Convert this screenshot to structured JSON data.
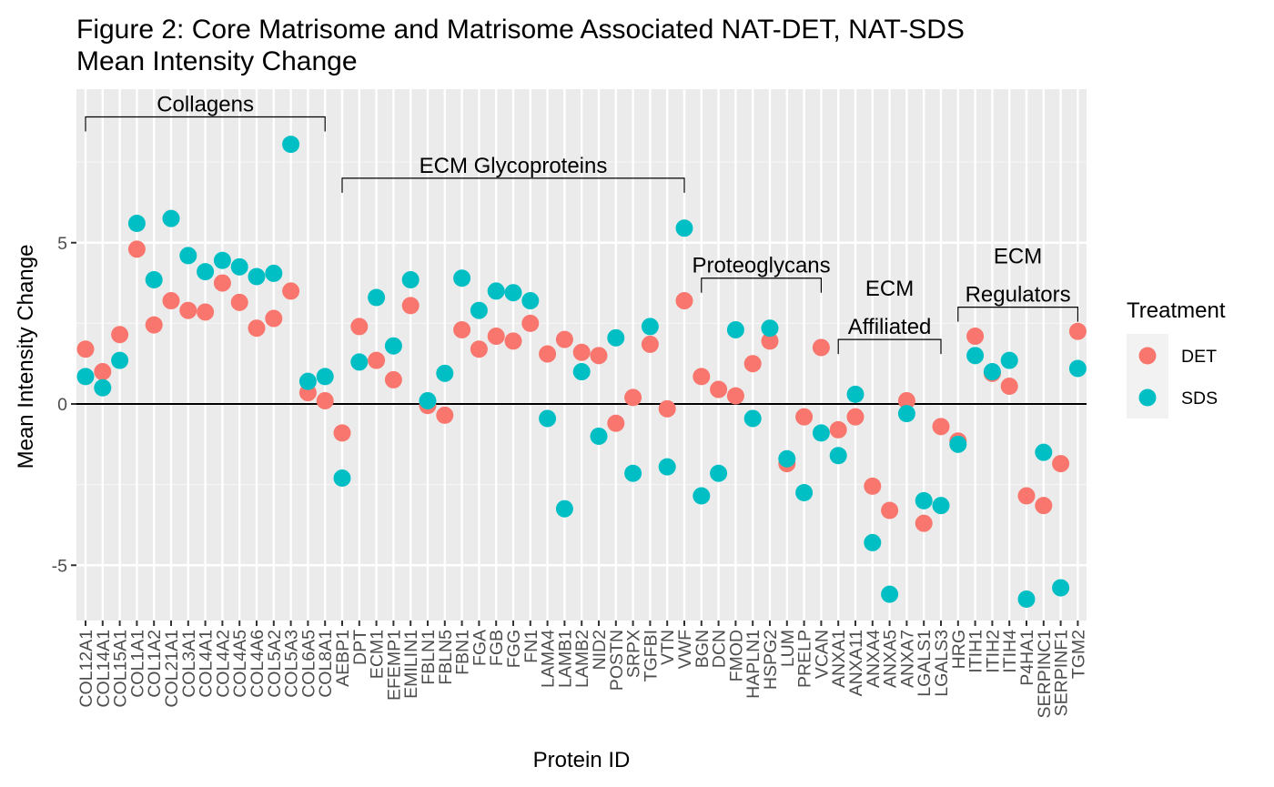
{
  "chart_data": {
    "type": "scatter",
    "title_lines": [
      "Figure 2: Core Matrisome and Matrisome Associated NAT-DET, NAT-SDS",
      "Mean Intensity Change"
    ],
    "xlabel": "Protein ID",
    "ylabel": "Mean Intensity Change",
    "ylim": [
      -6.9,
      9.8
    ],
    "yticks": [
      -5,
      0,
      5
    ],
    "ytick_labels": [
      "-5",
      "0",
      "5"
    ],
    "grid": true,
    "reference_line_y": 0,
    "legend": {
      "title": "Treatment",
      "placement": "right"
    },
    "categories": [
      "COL12A1",
      "COL14A1",
      "COL15A1",
      "COL1A1",
      "COL1A2",
      "COL21A1",
      "COL3A1",
      "COL4A1",
      "COL4A2",
      "COL4A5",
      "COL4A6",
      "COL5A2",
      "COL5A3",
      "COL6A5",
      "COL8A1",
      "AEBP1",
      "DPT",
      "ECM1",
      "EFEMP1",
      "EMILIN1",
      "FBLN1",
      "FBLN5",
      "FBN1",
      "FGA",
      "FGB",
      "FGG",
      "FN1",
      "LAMA4",
      "LAMB1",
      "LAMB2",
      "NID2",
      "POSTN",
      "SRPX",
      "TGFBI",
      "VTN",
      "VWF",
      "BGN",
      "DCN",
      "FMOD",
      "HAPLN1",
      "HSPG2",
      "LUM",
      "PRELP",
      "VCAN",
      "ANXA1",
      "ANXA11",
      "ANXA4",
      "ANXA5",
      "ANXA7",
      "LGALS1",
      "LGALS3",
      "HRG",
      "ITIH1",
      "ITIH2",
      "ITIH4",
      "P4HA1",
      "SERPINC1",
      "SERPINF1",
      "TGM2"
    ],
    "series": [
      {
        "name": "DET",
        "color": "#F8766D",
        "values": [
          1.7,
          1.0,
          2.15,
          4.8,
          2.45,
          3.2,
          2.9,
          2.85,
          3.75,
          3.15,
          2.35,
          2.65,
          3.5,
          0.35,
          0.1,
          -0.9,
          2.4,
          1.35,
          0.75,
          3.05,
          -0.05,
          -0.35,
          2.3,
          1.7,
          2.1,
          1.95,
          2.5,
          1.55,
          2.0,
          1.6,
          1.5,
          -0.6,
          0.2,
          1.85,
          -0.15,
          3.2,
          0.85,
          0.45,
          0.25,
          1.25,
          1.95,
          -1.85,
          -0.4,
          1.75,
          -0.8,
          -0.4,
          -2.55,
          -3.3,
          0.1,
          -3.7,
          -0.7,
          -1.15,
          2.1,
          0.95,
          0.55,
          -2.85,
          -3.15,
          -1.85,
          2.25
        ]
      },
      {
        "name": "SDS",
        "color": "#00BFC4",
        "values": [
          0.85,
          0.5,
          1.35,
          5.6,
          3.85,
          5.75,
          4.6,
          4.1,
          4.45,
          4.25,
          3.95,
          4.05,
          8.05,
          0.7,
          0.85,
          -2.3,
          1.3,
          3.3,
          1.8,
          3.85,
          0.1,
          0.95,
          3.9,
          2.9,
          3.5,
          3.45,
          3.2,
          -0.45,
          -3.25,
          1.0,
          -1.0,
          2.05,
          -2.15,
          2.4,
          -1.95,
          5.45,
          -2.85,
          -2.15,
          2.3,
          -0.45,
          2.35,
          -1.7,
          -2.75,
          -0.9,
          -1.6,
          0.3,
          -4.3,
          -5.9,
          -0.3,
          -3.0,
          -3.15,
          -1.25,
          1.5,
          1.0,
          1.35,
          -6.05,
          -1.5,
          -5.7,
          1.1
        ]
      }
    ],
    "groups": [
      {
        "label_lines": [
          "Collagens"
        ],
        "first": "COL12A1",
        "last": "COL8A1",
        "bracket_y": 8.9
      },
      {
        "label_lines": [
          "ECM Glycoproteins"
        ],
        "first": "AEBP1",
        "last": "VWF",
        "bracket_y": 7.0
      },
      {
        "label_lines": [
          "Proteoglycans"
        ],
        "first": "BGN",
        "last": "VCAN",
        "bracket_y": 3.9
      },
      {
        "label_lines": [
          "ECM",
          "Affiliated"
        ],
        "first": "ANXA1",
        "last": "LGALS3",
        "bracket_y": 2.0
      },
      {
        "label_lines": [
          "ECM",
          "Regulators"
        ],
        "first": "HRG",
        "last": "TGM2",
        "bracket_y": 3.0
      }
    ]
  }
}
